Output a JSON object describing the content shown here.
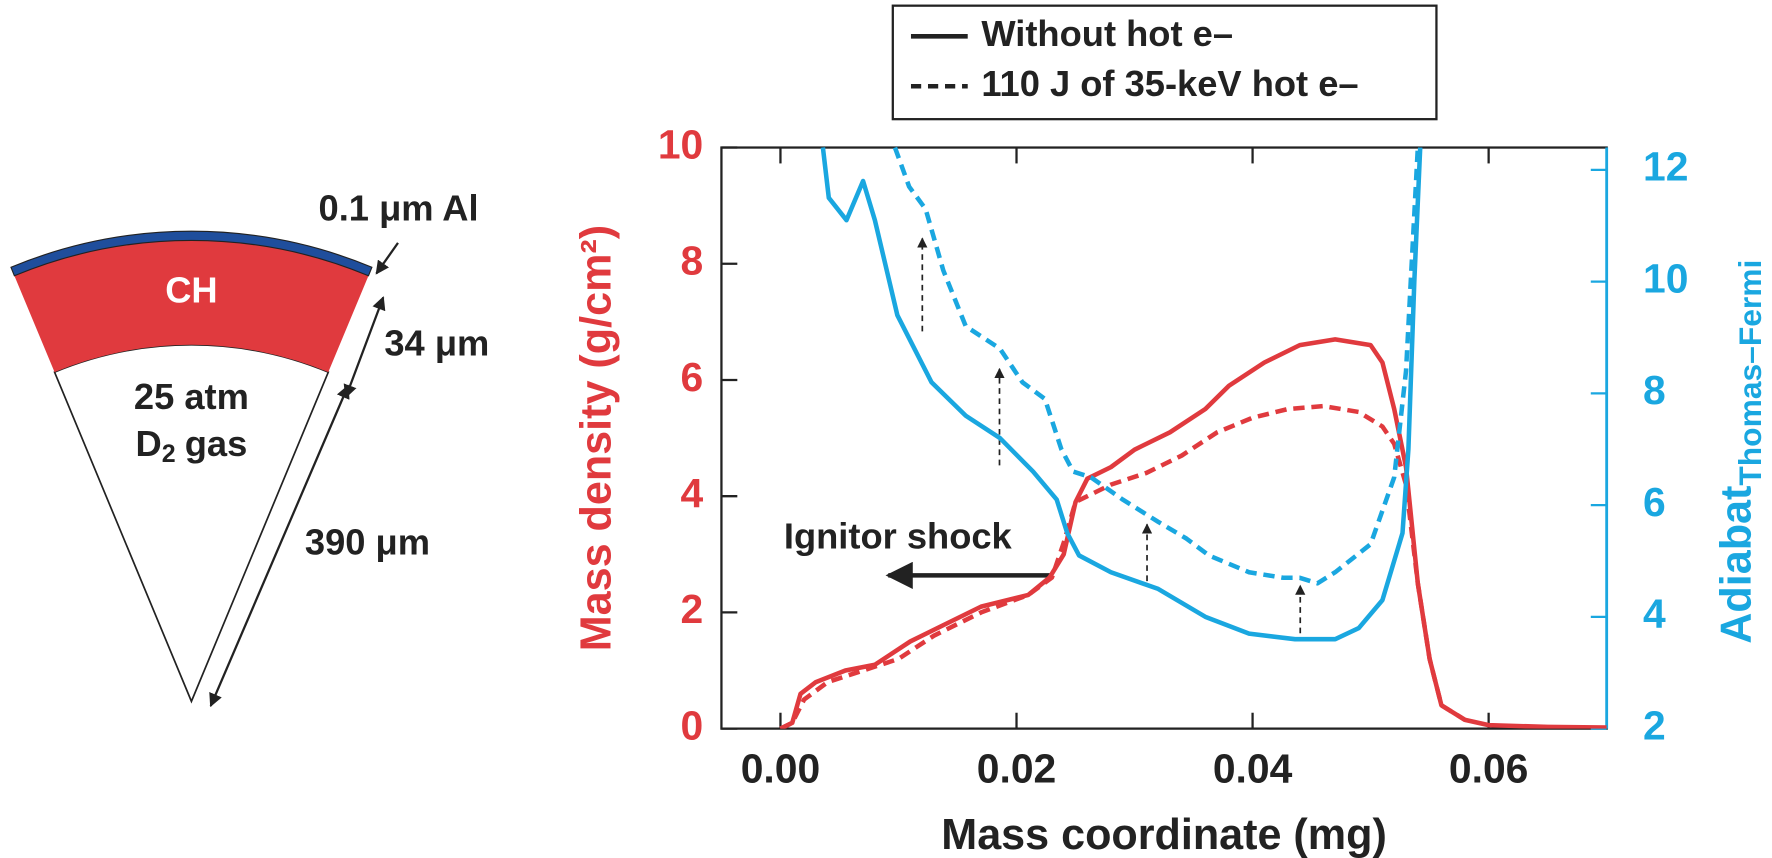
{
  "chart_data": {
    "type": "line",
    "xlabel": "Mass coordinate (mg)",
    "ylabel": "Mass density (g/cm²)",
    "y2label": "Adiabat",
    "y2label_subscript": "Thomas–Fermi",
    "xlim": [
      -0.005,
      0.07
    ],
    "xticks": [
      {
        "value": 0,
        "label": "0.00"
      },
      {
        "value": 0.02,
        "label": "0.02"
      },
      {
        "value": 0.04,
        "label": "0.04"
      },
      {
        "value": 0.06,
        "label": "0.06"
      }
    ],
    "ylim": [
      0,
      10
    ],
    "yticks": [
      0,
      2,
      4,
      6,
      8,
      10
    ],
    "y2lim": [
      2,
      12.4
    ],
    "y2ticks": [
      2,
      4,
      6,
      8,
      10,
      12
    ],
    "legend": [
      {
        "label": "Without hot e–",
        "dashed": false
      },
      {
        "label": "110 J of 35-keV hot e–",
        "dashed": true
      }
    ],
    "series": [
      {
        "legend": 0,
        "dashed": false,
        "axis": "y",
        "color": "#e03a3e",
        "x": [
          0.0,
          0.001,
          0.0017,
          0.003,
          0.0055,
          0.008,
          0.011,
          0.014,
          0.017,
          0.021,
          0.0228,
          0.024,
          0.025,
          0.026,
          0.028,
          0.03,
          0.033,
          0.036,
          0.038,
          0.041,
          0.044,
          0.047,
          0.05,
          0.051,
          0.052,
          0.053,
          0.054,
          0.055,
          0.056,
          0.058,
          0.06,
          0.065,
          0.07
        ],
        "values": [
          0,
          0.1,
          0.6,
          0.8,
          1.0,
          1.1,
          1.5,
          1.8,
          2.1,
          2.3,
          2.6,
          3.0,
          3.9,
          4.3,
          4.5,
          4.8,
          5.1,
          5.5,
          5.9,
          6.3,
          6.6,
          6.7,
          6.6,
          6.3,
          5.5,
          4.5,
          2.5,
          1.2,
          0.4,
          0.15,
          0.06,
          0.03,
          0.02
        ]
      },
      {
        "legend": 1,
        "dashed": true,
        "axis": "y",
        "color": "#e03a3e",
        "x": [
          0.0,
          0.001,
          0.002,
          0.004,
          0.007,
          0.01,
          0.013,
          0.017,
          0.021,
          0.023,
          0.024,
          0.025,
          0.026,
          0.028,
          0.031,
          0.034,
          0.037,
          0.04,
          0.043,
          0.046,
          0.049,
          0.051,
          0.052,
          0.053,
          0.054,
          0.055,
          0.056,
          0.058
        ],
        "values": [
          0,
          0.1,
          0.5,
          0.8,
          1.0,
          1.2,
          1.6,
          2.0,
          2.3,
          2.6,
          3.2,
          3.9,
          4.0,
          4.2,
          4.4,
          4.7,
          5.1,
          5.35,
          5.5,
          5.55,
          5.45,
          5.2,
          4.9,
          4.2,
          2.5,
          1.2,
          0.4,
          0.15
        ]
      },
      {
        "legend": 0,
        "dashed": false,
        "axis": "y2",
        "color": "#1aa7e0",
        "x": [
          0.0036,
          0.0041,
          0.0056,
          0.007,
          0.008,
          0.0099,
          0.0128,
          0.0157,
          0.0186,
          0.0214,
          0.0234,
          0.0243,
          0.0253,
          0.028,
          0.032,
          0.036,
          0.0397,
          0.0436,
          0.047,
          0.049,
          0.051,
          0.0527,
          0.0532,
          0.0537,
          0.0542
        ],
        "values": [
          12.4,
          11.5,
          11.1,
          11.8,
          11.1,
          9.4,
          8.2,
          7.6,
          7.2,
          6.6,
          6.1,
          5.5,
          5.1,
          4.8,
          4.5,
          4.0,
          3.7,
          3.6,
          3.6,
          3.8,
          4.3,
          5.5,
          7.0,
          10.0,
          12.4
        ]
      },
      {
        "legend": 1,
        "dashed": true,
        "axis": "y2",
        "color": "#1aa7e0",
        "x": [
          0.0097,
          0.0109,
          0.0123,
          0.0138,
          0.0157,
          0.0186,
          0.0205,
          0.0224,
          0.0238,
          0.0248,
          0.0263,
          0.029,
          0.032,
          0.0344,
          0.0363,
          0.0397,
          0.0426,
          0.044,
          0.0455,
          0.047,
          0.05,
          0.052,
          0.053,
          0.054
        ],
        "values": [
          12.4,
          11.7,
          11.3,
          10.2,
          9.2,
          8.8,
          8.2,
          7.9,
          7.0,
          6.6,
          6.5,
          6.1,
          5.7,
          5.4,
          5.1,
          4.8,
          4.7,
          4.7,
          4.6,
          4.8,
          5.3,
          6.5,
          8.4,
          12.4
        ]
      }
    ],
    "annotations": [
      {
        "text": "Ignitor shock"
      }
    ]
  },
  "diagram": {
    "al_label": "0.1 μm Al",
    "ch_label": "CH",
    "ch_thickness": "34 μm",
    "gas_pressure": "25 atm",
    "gas_parts": [
      "D",
      "2",
      "gas"
    ],
    "radius": "390 μm"
  }
}
